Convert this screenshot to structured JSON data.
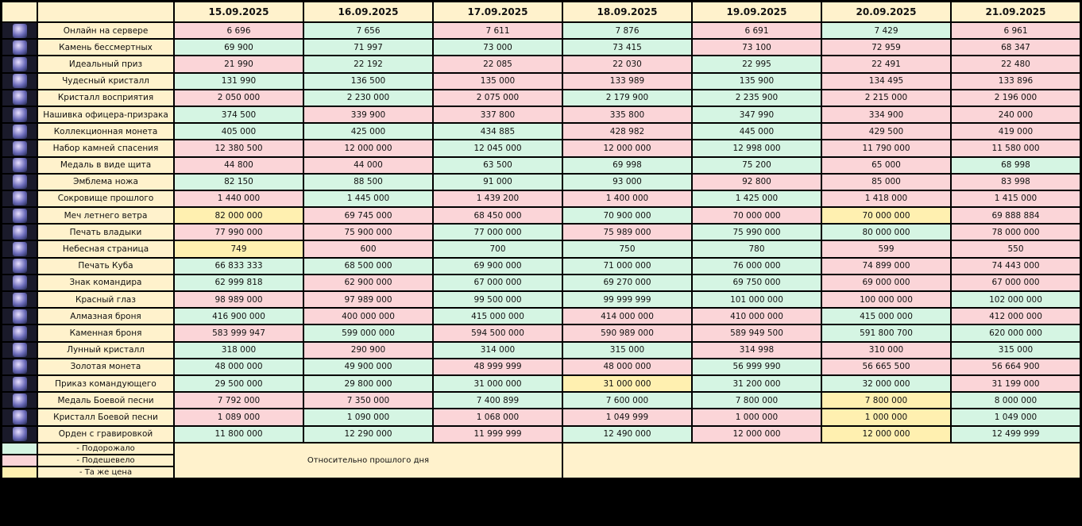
{
  "header": {
    "dates": [
      "15.09.2025",
      "16.09.2025",
      "17.09.2025",
      "18.09.2025",
      "19.09.2025",
      "20.09.2025",
      "21.09.2025"
    ]
  },
  "rows": [
    {
      "name": "Онлайн на сервере",
      "values": [
        "6 696",
        "7 656",
        "7 611",
        "7 876",
        "6 691",
        "7 429",
        "6 961"
      ],
      "colors": [
        "#fbd5d8",
        "#d5f5e3",
        "#fbd5d8",
        "#d5f5e3",
        "#fbd5d8",
        "#d5f5e3",
        "#fbd5d8"
      ]
    },
    {
      "name": "Камень бессмертных",
      "values": [
        "69 900",
        "71 997",
        "73 000",
        "73 415",
        "73 100",
        "72 959",
        "68 347"
      ],
      "colors": [
        "#d5f5e3",
        "#d5f5e3",
        "#d5f5e3",
        "#d5f5e3",
        "#fbd5d8",
        "#fbd5d8",
        "#fbd5d8"
      ]
    },
    {
      "name": "Идеальный приз",
      "values": [
        "21 990",
        "22 192",
        "22 085",
        "22 030",
        "22 995",
        "22 491",
        "22 480"
      ],
      "colors": [
        "#fbd5d8",
        "#d5f5e3",
        "#fbd5d8",
        "#fbd5d8",
        "#d5f5e3",
        "#fbd5d8",
        "#fbd5d8"
      ]
    },
    {
      "name": "Чудесный кристалл",
      "values": [
        "131 990",
        "136 500",
        "135 000",
        "133 989",
        "135 900",
        "134 495",
        "133 896"
      ],
      "colors": [
        "#d5f5e3",
        "#d5f5e3",
        "#fbd5d8",
        "#fbd5d8",
        "#d5f5e3",
        "#fbd5d8",
        "#fbd5d8"
      ]
    },
    {
      "name": "Кристалл восприятия",
      "values": [
        "2 050 000",
        "2 230 000",
        "2 075 000",
        "2 179 900",
        "2 235 900",
        "2 215 000",
        "2 196 000"
      ],
      "colors": [
        "#fbd5d8",
        "#d5f5e3",
        "#fbd5d8",
        "#d5f5e3",
        "#d5f5e3",
        "#fbd5d8",
        "#fbd5d8"
      ]
    },
    {
      "name": "Нашивка офицера-призрака",
      "values": [
        "374 500",
        "339 900",
        "337 800",
        "335 800",
        "347 990",
        "334 900",
        "240 000"
      ],
      "colors": [
        "#d5f5e3",
        "#fbd5d8",
        "#fbd5d8",
        "#fbd5d8",
        "#d5f5e3",
        "#fbd5d8",
        "#fbd5d8"
      ]
    },
    {
      "name": "Коллекционная монета",
      "values": [
        "405 000",
        "425 000",
        "434 885",
        "428 982",
        "445 000",
        "429 500",
        "419 000"
      ],
      "colors": [
        "#d5f5e3",
        "#d5f5e3",
        "#d5f5e3",
        "#fbd5d8",
        "#d5f5e3",
        "#fbd5d8",
        "#fbd5d8"
      ]
    },
    {
      "name": "Набор камней спасения",
      "values": [
        "12 380 500",
        "12 000 000",
        "12 045 000",
        "12 000 000",
        "12 998 000",
        "11 790 000",
        "11 580 000"
      ],
      "colors": [
        "#fbd5d8",
        "#fbd5d8",
        "#d5f5e3",
        "#fbd5d8",
        "#d5f5e3",
        "#fbd5d8",
        "#fbd5d8"
      ]
    },
    {
      "name": "Медаль в виде щита",
      "values": [
        "44 800",
        "44 000",
        "63 500",
        "69 998",
        "75 200",
        "65 000",
        "68 998"
      ],
      "colors": [
        "#fbd5d8",
        "#fbd5d8",
        "#d5f5e3",
        "#d5f5e3",
        "#d5f5e3",
        "#fbd5d8",
        "#d5f5e3"
      ]
    },
    {
      "name": "Эмблема ножа",
      "values": [
        "82 150",
        "88 500",
        "91 000",
        "93 000",
        "92 800",
        "85 000",
        "83 998"
      ],
      "colors": [
        "#d5f5e3",
        "#d5f5e3",
        "#d5f5e3",
        "#d5f5e3",
        "#fbd5d8",
        "#fbd5d8",
        "#fbd5d8"
      ]
    },
    {
      "name": "Сокровище прошлого",
      "values": [
        "1 440 000",
        "1 445 000",
        "1 439 200",
        "1 400 000",
        "1 425 000",
        "1 418 000",
        "1 415 000"
      ],
      "colors": [
        "#fbd5d8",
        "#d5f5e3",
        "#fbd5d8",
        "#fbd5d8",
        "#d5f5e3",
        "#fbd5d8",
        "#fbd5d8"
      ]
    },
    {
      "name": "Меч летнего ветра",
      "values": [
        "82 000 000",
        "69 745 000",
        "68 450 000",
        "70 900 000",
        "70 000 000",
        "70 000 000",
        "69 888 884"
      ],
      "colors": [
        "#fff0b0",
        "#fbd5d8",
        "#fbd5d8",
        "#d5f5e3",
        "#fbd5d8",
        "#fff0b0",
        "#fbd5d8"
      ]
    },
    {
      "name": "Печать владыки",
      "values": [
        "77 990 000",
        "75 900 000",
        "77 000 000",
        "75 989 000",
        "75 990 000",
        "80 000 000",
        "78 000 000"
      ],
      "colors": [
        "#fbd5d8",
        "#fbd5d8",
        "#d5f5e3",
        "#fbd5d8",
        "#d5f5e3",
        "#d5f5e3",
        "#fbd5d8"
      ]
    },
    {
      "name": "Небесная страница",
      "values": [
        "749",
        "600",
        "700",
        "750",
        "780",
        "599",
        "550"
      ],
      "colors": [
        "#fff0b0",
        "#fbd5d8",
        "#d5f5e3",
        "#d5f5e3",
        "#d5f5e3",
        "#fbd5d8",
        "#fbd5d8"
      ]
    },
    {
      "name": "Печать Куба",
      "values": [
        "66 833 333",
        "68 500 000",
        "69 900 000",
        "71 000 000",
        "76 000 000",
        "74 899 000",
        "74 443 000"
      ],
      "colors": [
        "#d5f5e3",
        "#d5f5e3",
        "#d5f5e3",
        "#d5f5e3",
        "#d5f5e3",
        "#fbd5d8",
        "#fbd5d8"
      ]
    },
    {
      "name": "Знак командира",
      "values": [
        "62 999 818",
        "62 900 000",
        "67 000 000",
        "69 270 000",
        "69 750 000",
        "69 000 000",
        "67 000 000"
      ],
      "colors": [
        "#d5f5e3",
        "#fbd5d8",
        "#d5f5e3",
        "#d5f5e3",
        "#d5f5e3",
        "#fbd5d8",
        "#fbd5d8"
      ]
    },
    {
      "name": "Красный глаз",
      "values": [
        "98 989 000",
        "97 989 000",
        "99 500 000",
        "99 999 999",
        "101 000 000",
        "100 000 000",
        "102 000 000"
      ],
      "colors": [
        "#fbd5d8",
        "#fbd5d8",
        "#d5f5e3",
        "#d5f5e3",
        "#d5f5e3",
        "#fbd5d8",
        "#d5f5e3"
      ]
    },
    {
      "name": "Алмазная броня",
      "values": [
        "416 900 000",
        "400 000 000",
        "415 000 000",
        "414 000 000",
        "410 000 000",
        "415 000 000",
        "412 000 000"
      ],
      "colors": [
        "#d5f5e3",
        "#fbd5d8",
        "#d5f5e3",
        "#fbd5d8",
        "#fbd5d8",
        "#d5f5e3",
        "#fbd5d8"
      ]
    },
    {
      "name": "Каменная броня",
      "values": [
        "583 999 947",
        "599 000 000",
        "594 500 000",
        "590 989 000",
        "589 949 500",
        "591 800 700",
        "620 000 000"
      ],
      "colors": [
        "#fbd5d8",
        "#d5f5e3",
        "#fbd5d8",
        "#fbd5d8",
        "#fbd5d8",
        "#d5f5e3",
        "#d5f5e3"
      ]
    },
    {
      "name": "Лунный кристалл",
      "values": [
        "318 000",
        "290 900",
        "314 000",
        "315 000",
        "314 998",
        "310 000",
        "315 000"
      ],
      "colors": [
        "#d5f5e3",
        "#fbd5d8",
        "#d5f5e3",
        "#d5f5e3",
        "#fbd5d8",
        "#fbd5d8",
        "#d5f5e3"
      ]
    },
    {
      "name": "Золотая монета",
      "values": [
        "48 000 000",
        "49 900 000",
        "48 999 999",
        "48 000 000",
        "56 999 990",
        "56 665 500",
        "56 664 900"
      ],
      "colors": [
        "#d5f5e3",
        "#d5f5e3",
        "#fbd5d8",
        "#fbd5d8",
        "#d5f5e3",
        "#fbd5d8",
        "#fbd5d8"
      ]
    },
    {
      "name": "Приказ командующего",
      "values": [
        "29 500 000",
        "29 800 000",
        "31 000 000",
        "31 000 000",
        "31 200 000",
        "32 000 000",
        "31 199 000"
      ],
      "colors": [
        "#d5f5e3",
        "#d5f5e3",
        "#d5f5e3",
        "#fff0b0",
        "#d5f5e3",
        "#d5f5e3",
        "#fbd5d8"
      ]
    },
    {
      "name": "Медаль Боевой песни",
      "values": [
        "7 792 000",
        "7 350 000",
        "7 400 899",
        "7 600 000",
        "7 800 000",
        "7 800 000",
        "8 000 000"
      ],
      "colors": [
        "#fbd5d8",
        "#fbd5d8",
        "#d5f5e3",
        "#d5f5e3",
        "#d5f5e3",
        "#fff0b0",
        "#d5f5e3"
      ]
    },
    {
      "name": "Кристалл Боевой песни",
      "values": [
        "1 089 000",
        "1 090 000",
        "1 068 000",
        "1 049 999",
        "1 000 000",
        "1 000 000",
        "1 049 000"
      ],
      "colors": [
        "#fbd5d8",
        "#d5f5e3",
        "#fbd5d8",
        "#fbd5d8",
        "#fbd5d8",
        "#fff0b0",
        "#d5f5e3"
      ]
    },
    {
      "name": "Орден с гравировкой",
      "values": [
        "11 800 000",
        "12 290 000",
        "11 999 999",
        "12 490 000",
        "12 000 000",
        "12 000 000",
        "12 499 999"
      ],
      "colors": [
        "#d5f5e3",
        "#d5f5e3",
        "#fbd5d8",
        "#d5f5e3",
        "#fbd5d8",
        "#fff0b0",
        "#d5f5e3"
      ]
    }
  ],
  "legend": [
    {
      "label": "- Подорожало",
      "color": "#d5f5e3"
    },
    {
      "label": "- Подешевело",
      "color": "#fbd5d8"
    },
    {
      "label": "- Та же цена",
      "color": "#fff0b0"
    }
  ],
  "footer_note": "Относительно прошлого дня"
}
